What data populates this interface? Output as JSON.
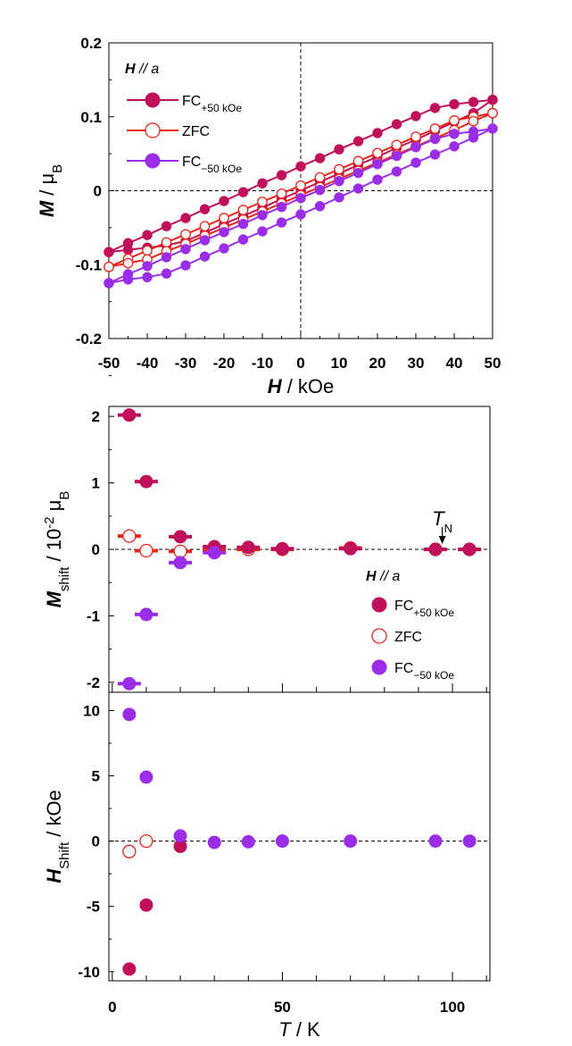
{
  "colors": {
    "fc_plus": "#c0105a",
    "zfc": "#e8251a",
    "fc_minus": "#9a2ee8"
  },
  "chart_data": [
    {
      "type": "line",
      "xlabel_var": "H",
      "xlabel_unit": " / kOe",
      "ylabel_var": "M",
      "ylabel_unit": " / μ",
      "ylabel_sub": "B",
      "xlim": [
        -50,
        50
      ],
      "ylim": [
        -0.2,
        0.2
      ],
      "xticks": [
        "-50",
        "-40",
        "-30",
        "-20",
        "-10",
        "0",
        "10",
        "20",
        "30",
        "40",
        "50"
      ],
      "yticks": [
        "0.2",
        "0.1",
        "0",
        "-0.1",
        "-0.2"
      ],
      "legend_title_var": "H",
      "legend_title_rest": " // a",
      "legend": [
        {
          "main": "FC",
          "sub": "+50 kOe"
        },
        {
          "main": "ZFC",
          "sub": ""
        },
        {
          "main": "FC",
          "sub": "−50 kOe"
        }
      ],
      "series": [
        {
          "name": "FC+50 kOe",
          "style": "filled",
          "color": "#c0105a",
          "x": [
            -50,
            -45,
            -40,
            -35,
            -30,
            -25,
            -20,
            -15,
            -10,
            -5,
            0,
            5,
            10,
            15,
            20,
            25,
            30,
            35,
            40,
            45,
            50
          ],
          "y_up": [
            -0.083,
            -0.071,
            -0.06,
            -0.048,
            -0.037,
            -0.025,
            -0.014,
            -0.002,
            0.01,
            0.021,
            0.033,
            0.044,
            0.056,
            0.067,
            0.078,
            0.09,
            0.101,
            0.112,
            0.117,
            0.12,
            0.123
          ],
          "y_down": [
            -0.083,
            -0.08,
            -0.077,
            -0.074,
            -0.068,
            -0.057,
            -0.045,
            -0.034,
            -0.023,
            -0.011,
            0.0,
            0.012,
            0.023,
            0.035,
            0.046,
            0.058,
            0.069,
            0.081,
            0.093,
            0.105,
            0.123
          ]
        },
        {
          "name": "ZFC",
          "style": "open",
          "color": "#e8251a",
          "x": [
            -50,
            -45,
            -40,
            -35,
            -30,
            -25,
            -20,
            -15,
            -10,
            -5,
            0,
            5,
            10,
            15,
            20,
            25,
            30,
            35,
            40,
            45,
            50
          ],
          "y_up": [
            -0.103,
            -0.092,
            -0.081,
            -0.07,
            -0.059,
            -0.048,
            -0.037,
            -0.026,
            -0.015,
            -0.004,
            0.007,
            0.018,
            0.029,
            0.04,
            0.051,
            0.062,
            0.073,
            0.084,
            0.095,
            0.1,
            0.105
          ],
          "y_down": [
            -0.103,
            -0.098,
            -0.093,
            -0.082,
            -0.072,
            -0.061,
            -0.05,
            -0.039,
            -0.028,
            -0.017,
            -0.006,
            0.005,
            0.016,
            0.027,
            0.038,
            0.049,
            0.06,
            0.071,
            0.082,
            0.094,
            0.105
          ]
        },
        {
          "name": "FC−50 kOe",
          "style": "filled",
          "color": "#9a2ee8",
          "x": [
            -50,
            -45,
            -40,
            -35,
            -30,
            -25,
            -20,
            -15,
            -10,
            -5,
            0,
            5,
            10,
            15,
            20,
            25,
            30,
            35,
            40,
            45,
            50
          ],
          "y_up": [
            -0.125,
            -0.12,
            -0.117,
            -0.112,
            -0.101,
            -0.089,
            -0.078,
            -0.066,
            -0.055,
            -0.043,
            -0.032,
            -0.021,
            -0.009,
            0.003,
            0.015,
            0.026,
            0.038,
            0.049,
            0.06,
            0.072,
            0.084
          ],
          "y_down": [
            -0.125,
            -0.113,
            -0.102,
            -0.09,
            -0.079,
            -0.067,
            -0.056,
            -0.045,
            -0.033,
            -0.022,
            -0.01,
            0.001,
            0.013,
            0.024,
            0.036,
            0.047,
            0.059,
            0.07,
            0.077,
            0.08,
            0.084
          ]
        }
      ]
    },
    {
      "type": "scatter",
      "ylabel_var": "M",
      "ylabel_sub": "shift",
      "ylabel_unit": " / 10",
      "ylabel_sup": "-2",
      "ylabel_unit2": " μ",
      "ylabel_sub2": "B",
      "xlim": [
        -1,
        111
      ],
      "ylim": [
        -2.15,
        2.15
      ],
      "yticks": [
        "2",
        "1",
        "0",
        "-1",
        "-2"
      ],
      "annotation_var": "T",
      "annotation_sub": "N",
      "annotation_x": 97,
      "legend_title_var": "H",
      "legend_title_rest": " // a",
      "legend": [
        {
          "main": "FC",
          "sub": "+50 kOe"
        },
        {
          "main": "ZFC",
          "sub": ""
        },
        {
          "main": "FC",
          "sub": "−50 kOe"
        }
      ],
      "series": [
        {
          "name": "FC+50 kOe",
          "style": "filled",
          "color": "#c0105a",
          "x": [
            5,
            10,
            20,
            30,
            40,
            50,
            70,
            95,
            105
          ],
          "y": [
            2.02,
            1.02,
            0.19,
            0.04,
            0.03,
            0.01,
            0.01,
            0.0,
            0.0
          ]
        },
        {
          "name": "ZFC",
          "style": "open",
          "color": "#e8251a",
          "x": [
            5,
            10,
            20,
            30,
            40,
            50,
            70,
            95,
            105
          ],
          "y": [
            0.2,
            -0.02,
            -0.03,
            0.0,
            0.0,
            0.0,
            0.02,
            0.0,
            0.0
          ]
        },
        {
          "name": "FC−50 kOe",
          "style": "filled",
          "color": "#9a2ee8",
          "x": [
            5,
            10,
            20,
            30
          ],
          "y": [
            -2.02,
            -0.98,
            -0.2,
            -0.05
          ]
        }
      ]
    },
    {
      "type": "scatter",
      "xlabel_var": "T",
      "xlabel_unit": " / K",
      "ylabel_var": "H",
      "ylabel_sub": "Shift",
      "ylabel_unit": " / kOe",
      "xlim": [
        -1,
        111
      ],
      "ylim": [
        -10.7,
        11.4
      ],
      "xticks": [
        "0",
        "50",
        "100"
      ],
      "yticks": [
        "10",
        "5",
        "0",
        "-5",
        "-10"
      ],
      "series": [
        {
          "name": "FC+50 kOe",
          "style": "filled",
          "color": "#c0105a",
          "x": [
            5,
            10,
            20
          ],
          "y": [
            -9.8,
            -4.9,
            -0.4
          ]
        },
        {
          "name": "ZFC",
          "style": "open",
          "color": "#e8251a",
          "x": [
            5,
            10
          ],
          "y": [
            -0.8,
            0.0
          ]
        },
        {
          "name": "FC−50 kOe",
          "style": "filled",
          "color": "#9a2ee8",
          "x": [
            5,
            10,
            20,
            30,
            40,
            50,
            70,
            95,
            105
          ],
          "y": [
            9.7,
            4.9,
            0.4,
            -0.1,
            -0.05,
            0.0,
            0.0,
            0.0,
            0.0
          ]
        }
      ]
    }
  ]
}
